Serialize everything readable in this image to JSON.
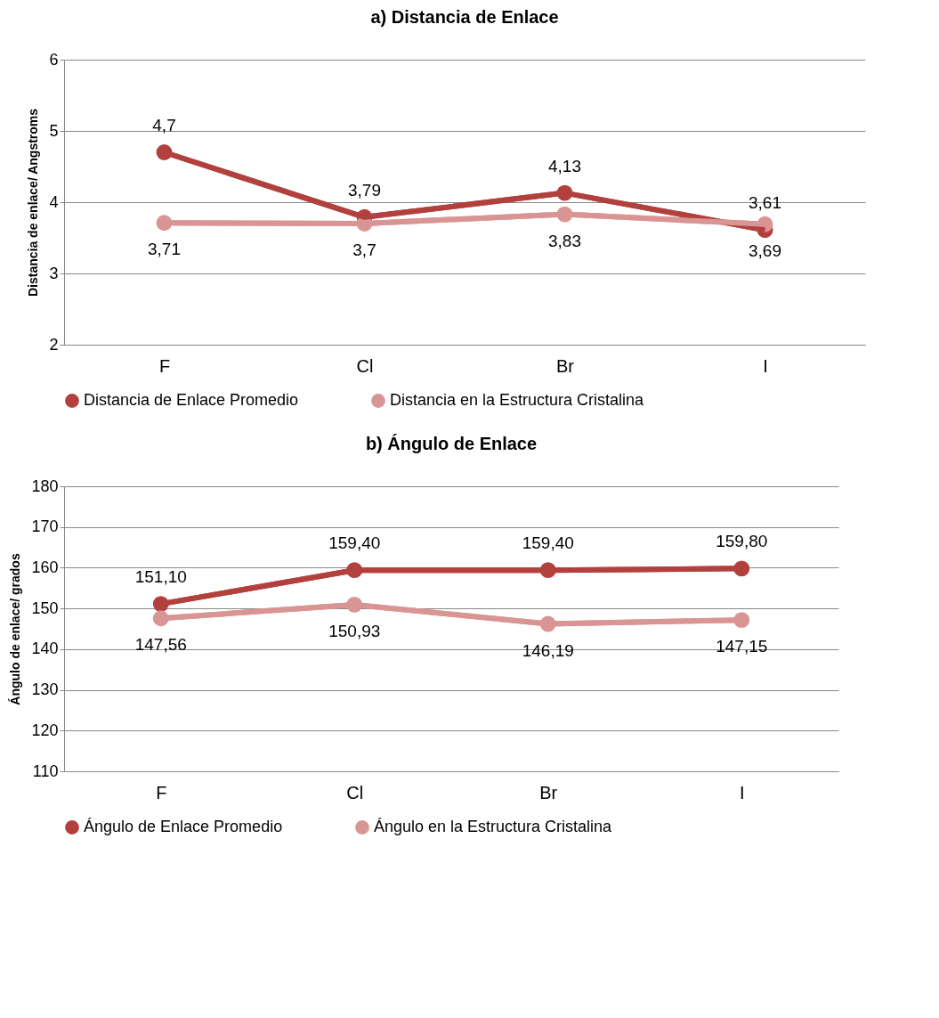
{
  "chart_data": [
    {
      "type": "line",
      "title": "a) Distancia de Enlace",
      "ylabel": "Distancia de enlace/ Angstroms",
      "categories": [
        "F",
        "Cl",
        "Br",
        "I"
      ],
      "ylim": [
        2,
        6
      ],
      "yticks": [
        2,
        3,
        4,
        5,
        6
      ],
      "grid": "y",
      "legend": "bottom",
      "marker": "circle",
      "series": [
        {
          "name": "Distancia de Enlace Promedio",
          "color": "#b2413e",
          "values": [
            4.7,
            3.79,
            4.13,
            3.61
          ],
          "value_labels": [
            "4,7",
            "3,79",
            "4,13",
            "3,61"
          ]
        },
        {
          "name": "Distancia en la Estructura Cristalina",
          "color": "#d99594",
          "values": [
            3.71,
            3.7,
            3.83,
            3.69
          ],
          "value_labels": [
            "3,71",
            "3,7",
            "3,83",
            "3,69"
          ]
        }
      ]
    },
    {
      "type": "line",
      "title": "b) Ángulo de Enlace",
      "ylabel": "Ángulo de enlace/ grados",
      "categories": [
        "F",
        "Cl",
        "Br",
        "I"
      ],
      "ylim": [
        110,
        180
      ],
      "yticks": [
        110,
        120,
        130,
        140,
        150,
        160,
        170,
        180
      ],
      "grid": "y",
      "legend": "bottom",
      "marker": "circle",
      "series": [
        {
          "name": "Ángulo de Enlace Promedio",
          "color": "#b2413e",
          "values": [
            151.1,
            159.4,
            159.4,
            159.8
          ],
          "value_labels": [
            "151,10",
            "159,40",
            "159,40",
            "159,80"
          ]
        },
        {
          "name": "Ángulo en la Estructura Cristalina",
          "color": "#d99594",
          "values": [
            147.56,
            150.93,
            146.19,
            147.15
          ],
          "value_labels": [
            "147,56",
            "150,93",
            "146,19",
            "147,15"
          ]
        }
      ]
    }
  ]
}
